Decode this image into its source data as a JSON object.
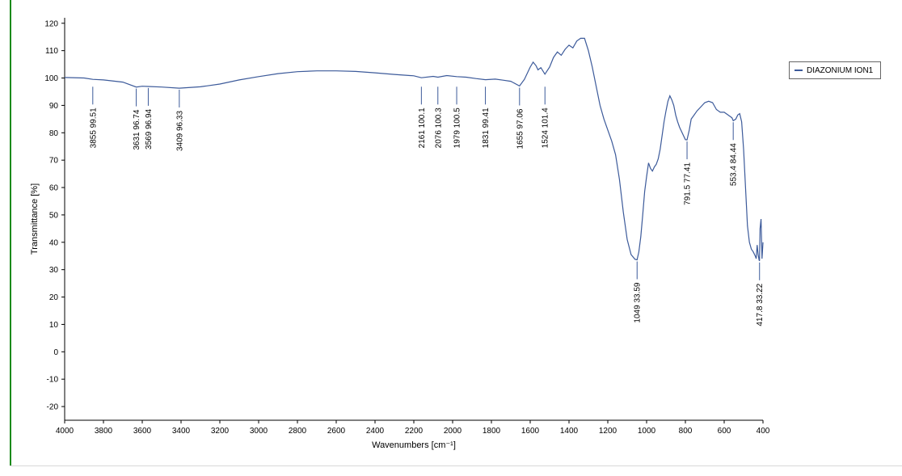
{
  "colors": {
    "series": "#3c5a9a",
    "axis": "#000000",
    "frame_accent": "#1a8a1a"
  },
  "chart_data": {
    "type": "line",
    "xlabel": "Wavenumbers [cm⁻¹]",
    "ylabel": "Transmittance [%]",
    "xlim": [
      4000,
      400
    ],
    "ylim": [
      -25,
      122
    ],
    "x_ticks": [
      4000,
      3800,
      3600,
      3400,
      3200,
      3000,
      2800,
      2600,
      2400,
      2200,
      2000,
      1800,
      1600,
      1400,
      1200,
      1000,
      800,
      600,
      400
    ],
    "y_ticks": [
      -20,
      -10,
      0,
      10,
      20,
      30,
      40,
      50,
      60,
      70,
      80,
      90,
      100,
      110,
      120
    ],
    "grid": false,
    "legend_position": "right",
    "series": [
      {
        "name": "DIAZONIUM ION1",
        "x": [
          4000,
          3900,
          3855,
          3800,
          3700,
          3631,
          3600,
          3569,
          3500,
          3409,
          3300,
          3200,
          3100,
          3000,
          2900,
          2800,
          2700,
          2600,
          2500,
          2400,
          2300,
          2200,
          2161,
          2100,
          2076,
          2030,
          1979,
          1930,
          1880,
          1831,
          1780,
          1740,
          1700,
          1655,
          1630,
          1600,
          1585,
          1570,
          1560,
          1545,
          1524,
          1500,
          1480,
          1460,
          1440,
          1420,
          1400,
          1380,
          1360,
          1340,
          1320,
          1300,
          1280,
          1260,
          1240,
          1220,
          1200,
          1180,
          1160,
          1140,
          1120,
          1100,
          1080,
          1060,
          1049,
          1040,
          1030,
          1020,
          1010,
          1000,
          990,
          980,
          970,
          960,
          950,
          940,
          930,
          920,
          910,
          900,
          890,
          880,
          870,
          860,
          850,
          840,
          830,
          820,
          810,
          800,
          791.5,
          780,
          770,
          760,
          740,
          720,
          700,
          680,
          660,
          640,
          620,
          600,
          580,
          570,
          560,
          553.4,
          540,
          530,
          520,
          510,
          500,
          490,
          480,
          470,
          460,
          450,
          440,
          435,
          430,
          425,
          420,
          417.8,
          415,
          410,
          405,
          400
        ],
        "y": [
          100.2,
          100.0,
          99.5,
          99.3,
          98.5,
          96.7,
          97.0,
          96.9,
          96.7,
          96.3,
          96.8,
          97.8,
          99.3,
          100.5,
          101.6,
          102.3,
          102.6,
          102.6,
          102.4,
          101.9,
          101.3,
          100.8,
          100.1,
          100.6,
          100.3,
          100.9,
          100.5,
          100.3,
          99.8,
          99.4,
          99.6,
          99.2,
          98.8,
          97.1,
          99.5,
          104.0,
          105.8,
          104.5,
          103.0,
          103.8,
          101.4,
          104.0,
          107.5,
          109.5,
          108.3,
          110.5,
          112.0,
          111.0,
          113.5,
          114.5,
          114.5,
          110.0,
          104.0,
          97.0,
          90.0,
          85.0,
          81.0,
          77.0,
          72.0,
          63.0,
          51.0,
          41.0,
          35.5,
          33.8,
          33.6,
          36.5,
          42.0,
          50.0,
          58.5,
          64.0,
          69.0,
          67.0,
          66.0,
          67.5,
          68.5,
          70.5,
          74.0,
          79.0,
          84.0,
          88.0,
          91.5,
          93.5,
          92.0,
          90.0,
          86.5,
          84.0,
          82.0,
          80.5,
          79.0,
          77.5,
          77.4,
          81.0,
          85.0,
          86.0,
          88.0,
          89.5,
          91.0,
          91.5,
          91.0,
          88.5,
          87.5,
          87.5,
          86.5,
          86.0,
          85.5,
          84.4,
          85.0,
          86.5,
          87.0,
          84.0,
          74.0,
          60.0,
          46.0,
          40.0,
          37.5,
          36.5,
          35.0,
          34.0,
          39.0,
          35.5,
          33.5,
          33.2,
          45.0,
          48.5,
          34.0,
          40.0
        ]
      }
    ],
    "peak_labels": [
      {
        "x": 3855,
        "y": 99.51,
        "text": "3855  99.51"
      },
      {
        "x": 3631,
        "y": 96.74,
        "text": "3631  96.74"
      },
      {
        "x": 3569,
        "y": 96.94,
        "text": "3569  96.94"
      },
      {
        "x": 3409,
        "y": 96.33,
        "text": "3409  96.33"
      },
      {
        "x": 2161,
        "y": 100.1,
        "text": "2161  100.1"
      },
      {
        "x": 2076,
        "y": 100.3,
        "text": "2076  100.3"
      },
      {
        "x": 1979,
        "y": 100.5,
        "text": "1979  100.5"
      },
      {
        "x": 1831,
        "y": 99.41,
        "text": "1831  99.41"
      },
      {
        "x": 1655,
        "y": 97.06,
        "text": "1655  97.06"
      },
      {
        "x": 1524,
        "y": 101.4,
        "text": "1524  101.4"
      },
      {
        "x": 1049,
        "y": 33.59,
        "text": "1049  33.59"
      },
      {
        "x": 791.5,
        "y": 77.41,
        "text": "791.5  77.41"
      },
      {
        "x": 553.4,
        "y": 84.44,
        "text": "553.4  84.44"
      },
      {
        "x": 417.8,
        "y": 33.22,
        "text": "417.8  33.22"
      }
    ]
  }
}
